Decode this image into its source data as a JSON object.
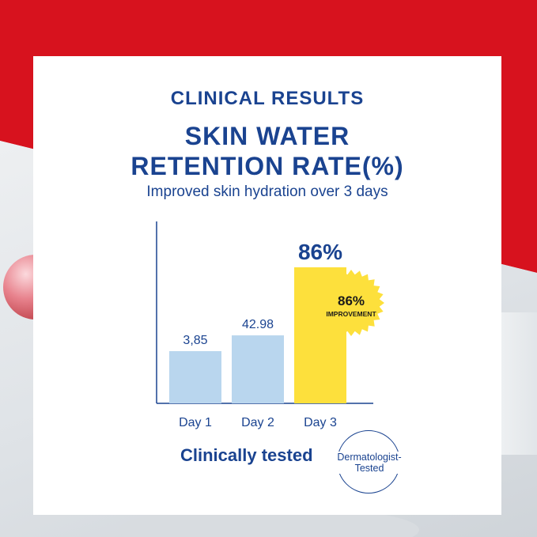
{
  "header": {
    "kicker": "CLINICAL RESULTS",
    "title_line1": "SKIN WATER",
    "title_line2": "RETENTION RATE(%)",
    "subtitle": "Improved skin hydration over 3 days"
  },
  "chart_data": {
    "type": "bar",
    "categories": [
      "Day 1",
      "Day 2",
      "Day 3"
    ],
    "values": [
      3.85,
      42.98,
      86
    ],
    "data_labels": [
      "3,85",
      "42.98",
      "86%"
    ],
    "bar_colors": [
      "#b9d6ee",
      "#b9d6ee",
      "#fde03c"
    ],
    "ylim": [
      0,
      100
    ],
    "grid": false,
    "annotation": {
      "value": "86%",
      "text": "IMPROVEMENT",
      "color": "#fde03c",
      "text_color": "#1a1a1a"
    }
  },
  "footer": {
    "tested_label": "Clinically tested",
    "badge_line1": "Dermatologist-",
    "badge_line2": "Tested"
  },
  "colors": {
    "brand_blue": "#1a4390",
    "accent_red": "#d7121e",
    "bar_blue": "#b9d6ee",
    "bar_yellow": "#fde03c"
  }
}
